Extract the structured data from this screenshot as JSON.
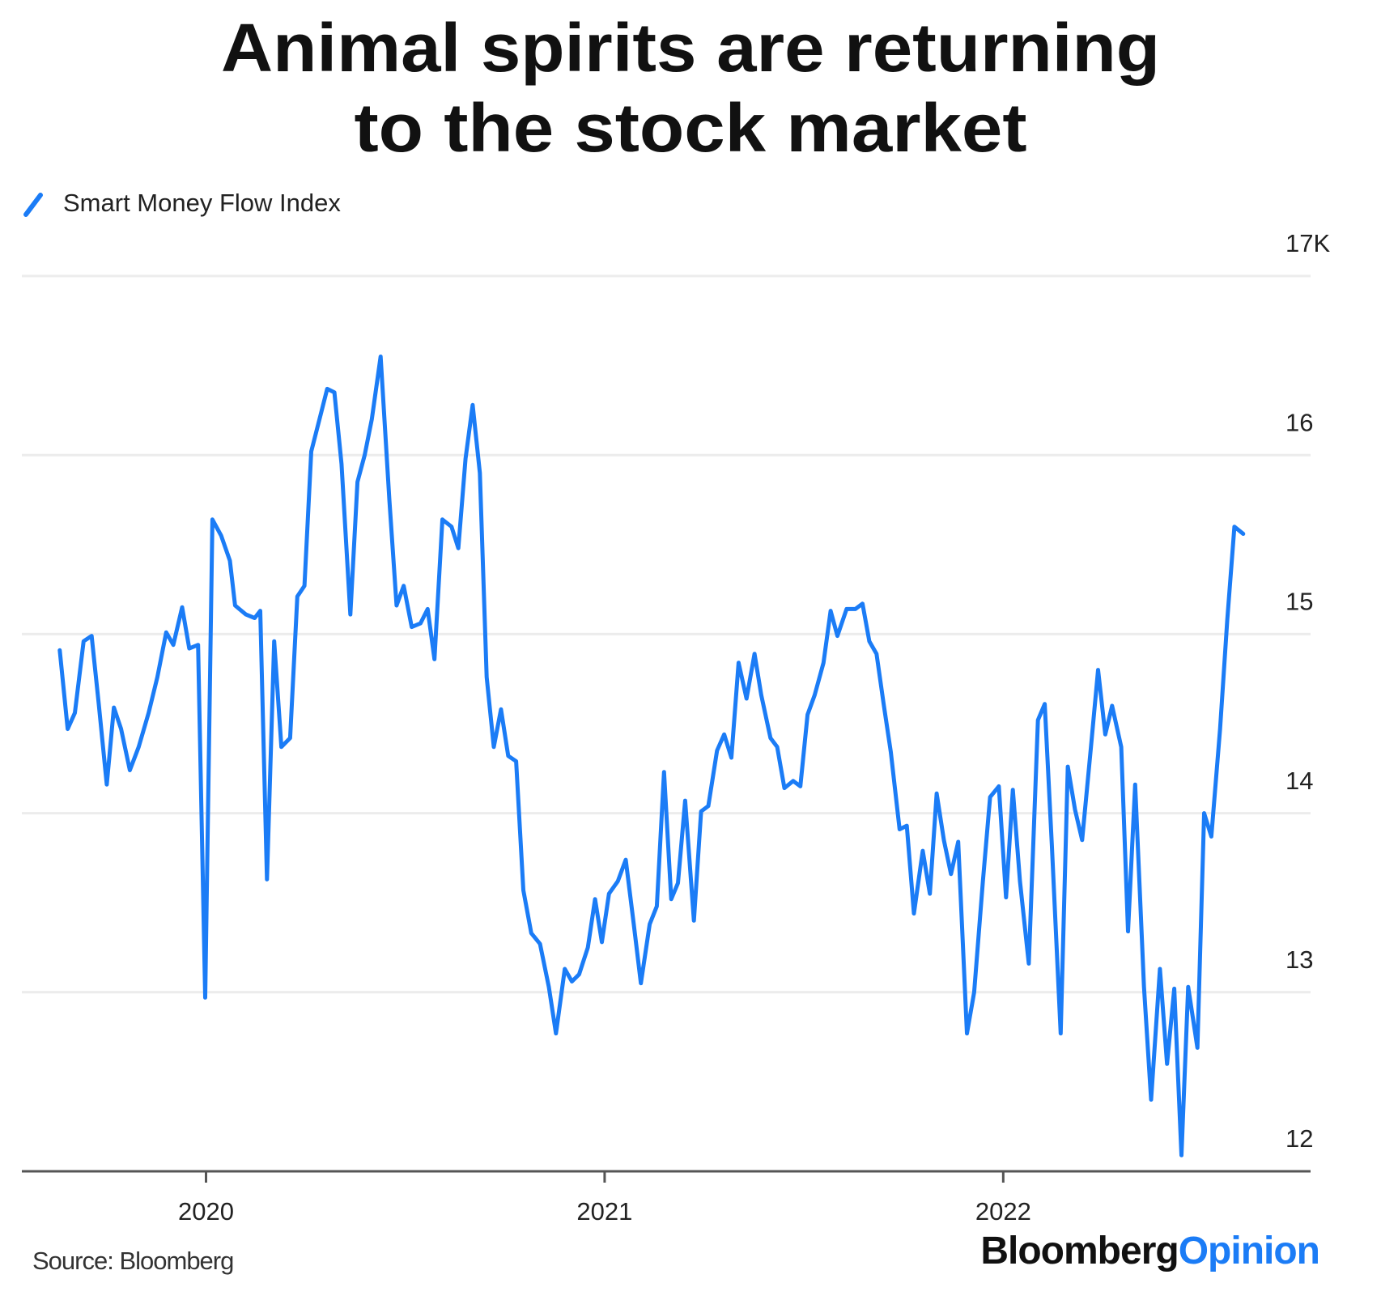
{
  "chart_data": {
    "type": "line",
    "title": [
      "Animal spirits are returning",
      "to the stock market"
    ],
    "source": "Source: Bloomberg",
    "brand": [
      "Bloomberg",
      "Opinion"
    ],
    "legend": "top-left",
    "grid": true,
    "xlim": [
      2019.538,
      2022.771
    ],
    "xticks": [
      2020,
      2021,
      2022
    ],
    "ylim": [
      12,
      17
    ],
    "yticks": [
      12,
      13,
      14,
      15,
      16,
      {
        "value": 17,
        "label": "17K"
      }
    ],
    "series": [
      {
        "name": "Smart Money Flow Index",
        "color": "#1b7cf6",
        "x": [
          2019.633,
          2019.653,
          2019.671,
          2019.693,
          2019.713,
          2019.731,
          2019.751,
          2019.769,
          2019.787,
          2019.809,
          2019.831,
          2019.856,
          2019.878,
          2019.9,
          2019.918,
          2019.94,
          2019.958,
          2019.98,
          2019.998,
          2020.016,
          2020.038,
          2020.06,
          2020.073,
          2020.1,
          2020.122,
          2020.136,
          2020.153,
          2020.171,
          2020.189,
          2020.211,
          2020.229,
          2020.247,
          2020.264,
          2020.287,
          2020.304,
          2020.322,
          2020.34,
          2020.362,
          2020.38,
          2020.398,
          2020.416,
          2020.438,
          2020.46,
          2020.478,
          2020.496,
          2020.516,
          2020.538,
          2020.556,
          2020.573,
          2020.593,
          2020.616,
          2020.633,
          2020.651,
          2020.669,
          2020.687,
          2020.704,
          2020.722,
          2020.74,
          2020.758,
          2020.778,
          2020.796,
          2020.816,
          2020.838,
          2020.86,
          2020.878,
          2020.9,
          2020.918,
          2020.936,
          2020.958,
          2020.976,
          2020.993,
          2021.011,
          2021.033,
          2021.053,
          2021.073,
          2021.091,
          2021.113,
          2021.131,
          2021.149,
          2021.167,
          2021.184,
          2021.202,
          2021.224,
          2021.242,
          2021.26,
          2021.282,
          2021.3,
          2021.318,
          2021.336,
          2021.356,
          2021.376,
          2021.393,
          2021.416,
          2021.433,
          2021.451,
          2021.473,
          2021.491,
          2021.509,
          2021.527,
          2021.549,
          2021.567,
          2021.584,
          2021.607,
          2021.629,
          2021.647,
          2021.664,
          2021.682,
          2021.7,
          2021.718,
          2021.74,
          2021.758,
          2021.776,
          2021.798,
          2021.816,
          2021.833,
          2021.851,
          2021.869,
          2021.887,
          2021.909,
          2021.927,
          2021.949,
          2021.967,
          2021.989,
          2022.007,
          2022.024,
          2022.042,
          2022.064,
          2022.087,
          2022.104,
          2022.122,
          2022.144,
          2022.162,
          2022.18,
          2022.198,
          2022.22,
          2022.238,
          2022.256,
          2022.273,
          2022.296,
          2022.313,
          2022.331,
          2022.353,
          2022.371,
          2022.393,
          2022.411,
          2022.429,
          2022.447,
          2022.464,
          2022.487,
          2022.504,
          2022.522,
          2022.544,
          2022.562,
          2022.58,
          2022.602
        ],
        "values": [
          14.91,
          14.47,
          14.56,
          14.96,
          14.99,
          14.61,
          14.16,
          14.59,
          14.47,
          14.24,
          14.37,
          14.56,
          14.76,
          15.01,
          14.94,
          15.15,
          14.92,
          14.94,
          12.97,
          15.64,
          15.55,
          15.41,
          15.16,
          15.11,
          15.09,
          15.13,
          13.63,
          14.96,
          14.37,
          14.42,
          15.21,
          15.27,
          16.02,
          16.22,
          16.37,
          16.35,
          15.95,
          15.11,
          15.85,
          16.0,
          16.2,
          16.55,
          15.75,
          15.16,
          15.27,
          15.04,
          15.06,
          15.14,
          14.86,
          15.64,
          15.6,
          15.48,
          15.98,
          16.28,
          15.9,
          14.76,
          14.37,
          14.58,
          14.32,
          14.29,
          13.57,
          13.33,
          13.27,
          13.03,
          12.77,
          13.13,
          13.06,
          13.1,
          13.25,
          13.52,
          13.28,
          13.55,
          13.62,
          13.74,
          13.38,
          13.05,
          13.38,
          13.48,
          14.23,
          13.52,
          13.61,
          14.07,
          13.4,
          14.01,
          14.04,
          14.35,
          14.44,
          14.31,
          14.84,
          14.64,
          14.89,
          14.66,
          14.42,
          14.37,
          14.14,
          14.18,
          14.15,
          14.55,
          14.66,
          14.84,
          15.13,
          14.99,
          15.14,
          15.14,
          15.17,
          14.96,
          14.89,
          14.61,
          14.34,
          13.91,
          13.93,
          13.44,
          13.79,
          13.55,
          14.11,
          13.85,
          13.66,
          13.84,
          12.77,
          13.0,
          13.62,
          14.09,
          14.15,
          13.53,
          14.13,
          13.62,
          13.16,
          14.52,
          14.61,
          13.82,
          12.77,
          14.26,
          14.02,
          13.85,
          14.37,
          14.8,
          14.44,
          14.6,
          14.37,
          13.34,
          14.16,
          13.03,
          12.4,
          13.13,
          12.6,
          13.02,
          12.09,
          13.03,
          12.69,
          14.0,
          13.87,
          14.47,
          15.08,
          15.6,
          15.56
        ]
      }
    ]
  }
}
